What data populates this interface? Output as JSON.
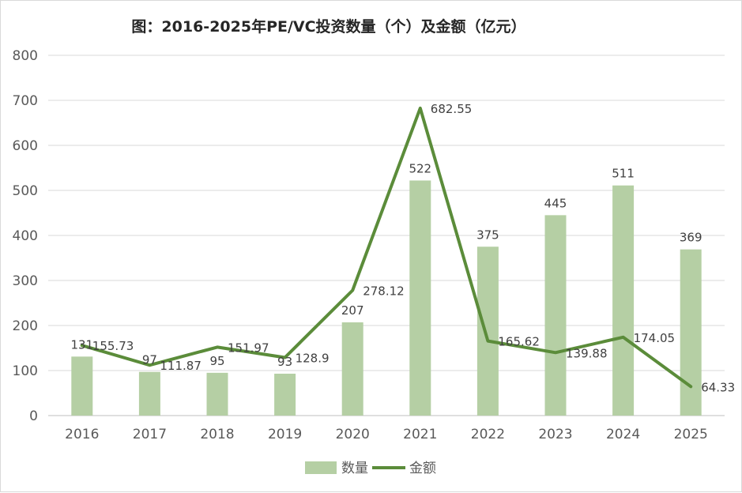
{
  "chart_data": {
    "type": "bar",
    "title": "图：2016-2025年PE/VC投资数量（个）及金额（亿元）",
    "categories": [
      "2016",
      "2017",
      "2018",
      "2019",
      "2020",
      "2021",
      "2022",
      "2023",
      "2024",
      "2025"
    ],
    "ylim": [
      0,
      800
    ],
    "yticks": [
      0,
      100,
      200,
      300,
      400,
      500,
      600,
      700,
      800
    ],
    "grid": true,
    "legend_position": "bottom",
    "series": [
      {
        "name": "数量",
        "type": "bar",
        "color": "#b5cfa4",
        "values": [
          131,
          97,
          95,
          93,
          207,
          522,
          375,
          445,
          511,
          369
        ],
        "labels": [
          "131",
          "97",
          "95",
          "93",
          "207",
          "522",
          "375",
          "445",
          "511",
          "369"
        ]
      },
      {
        "name": "金额",
        "type": "line",
        "color": "#5b8c3a",
        "values": [
          155.73,
          111.87,
          151.97,
          128.9,
          278.12,
          682.55,
          165.62,
          139.88,
          174.05,
          64.33
        ],
        "labels": [
          "155.73",
          "111.87",
          "151.97",
          "128.9",
          "278.12",
          "682.55",
          "165.62",
          "139.88",
          "174.05",
          "64.33"
        ]
      }
    ]
  }
}
